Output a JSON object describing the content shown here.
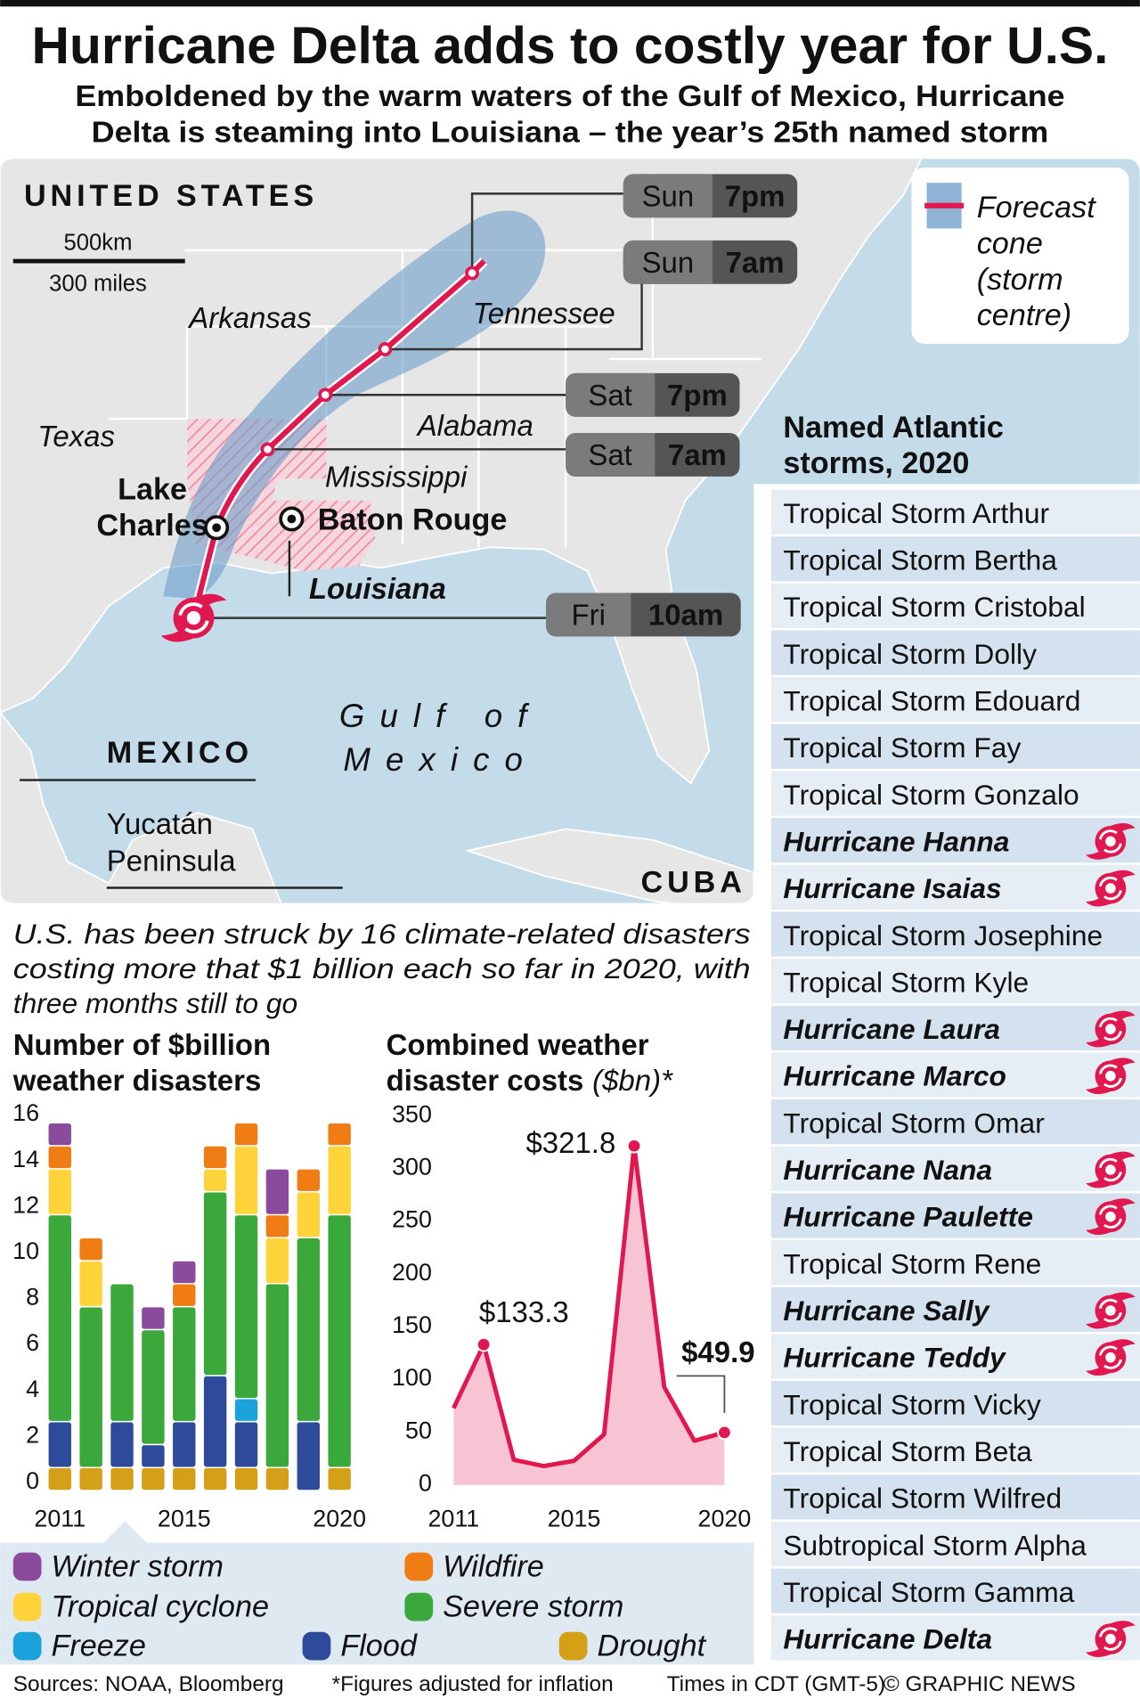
{
  "title": "Hurricane Delta adds to costly year for U.S.",
  "subtitle": [
    "Emboldened by the warm waters of the Gulf of Mexico, Hurricane",
    "Delta is steaming into Louisiana – the year’s 25th named storm"
  ],
  "map": {
    "countries": [
      "UNITED STATES",
      "MEXICO",
      "CUBA"
    ],
    "places": [
      "Arkansas",
      "Tennessee",
      "Texas",
      "Alabama",
      "Mississippi",
      "Louisiana"
    ],
    "cities": [
      [
        "Lake",
        "Charles"
      ],
      [
        "Baton Rouge"
      ]
    ],
    "sea": [
      "Gulf of",
      "Mexico"
    ],
    "peninsula": [
      "Yucatán",
      "Peninsula"
    ],
    "scale": [
      "500km",
      "300 miles"
    ],
    "legend": [
      "Forecast",
      "cone",
      "(storm",
      "centre)"
    ],
    "timeline": [
      {
        "day": "Sun",
        "time": "7pm"
      },
      {
        "day": "Sun",
        "time": "7am"
      },
      {
        "day": "Sat",
        "time": "7pm"
      },
      {
        "day": "Sat",
        "time": "7am"
      },
      {
        "day": "Fri",
        "time": "10am"
      }
    ]
  },
  "storms": {
    "title": [
      "Named Atlantic",
      "storms, 2020"
    ],
    "items": [
      {
        "name": "Tropical Storm Arthur",
        "hurricane": false
      },
      {
        "name": "Tropical Storm Bertha",
        "hurricane": false
      },
      {
        "name": "Tropical Storm Cristobal",
        "hurricane": false
      },
      {
        "name": "Tropical Storm Dolly",
        "hurricane": false
      },
      {
        "name": "Tropical Storm Edouard",
        "hurricane": false
      },
      {
        "name": "Tropical Storm Fay",
        "hurricane": false
      },
      {
        "name": "Tropical Storm Gonzalo",
        "hurricane": false
      },
      {
        "name": "Hurricane Hanna",
        "hurricane": true
      },
      {
        "name": "Hurricane Isaias",
        "hurricane": true
      },
      {
        "name": "Tropical Storm Josephine",
        "hurricane": false
      },
      {
        "name": "Tropical Storm Kyle",
        "hurricane": false
      },
      {
        "name": "Hurricane Laura",
        "hurricane": true
      },
      {
        "name": "Hurricane Marco",
        "hurricane": true
      },
      {
        "name": "Tropical Storm Omar",
        "hurricane": false
      },
      {
        "name": "Hurricane Nana",
        "hurricane": true
      },
      {
        "name": "Hurricane Paulette",
        "hurricane": true
      },
      {
        "name": "Tropical Storm Rene",
        "hurricane": false
      },
      {
        "name": "Hurricane Sally",
        "hurricane": true
      },
      {
        "name": "Hurricane Teddy",
        "hurricane": true
      },
      {
        "name": "Tropical Storm Vicky",
        "hurricane": false
      },
      {
        "name": "Tropical Storm Beta",
        "hurricane": false
      },
      {
        "name": "Tropical Storm Wilfred",
        "hurricane": false
      },
      {
        "name": "Subtropical Storm Alpha",
        "hurricane": false
      },
      {
        "name": "Tropical Storm Gamma",
        "hurricane": false
      },
      {
        "name": "Hurricane Delta",
        "hurricane": true
      }
    ]
  },
  "intro": [
    "U.S. has been struck by 16 climate-related disasters",
    "costing more that $1 billion each so far in 2020, with",
    "three months still to go"
  ],
  "chart_data": [
    {
      "type": "bar",
      "stacked": true,
      "title": [
        "Number of $billion",
        "weather disasters"
      ],
      "categories": [
        "2011",
        null,
        null,
        null,
        "2015",
        null,
        null,
        null,
        null,
        "2020"
      ],
      "ylim": [
        0,
        16
      ],
      "yticks": [
        0,
        2,
        4,
        6,
        8,
        10,
        12,
        14,
        16
      ],
      "series": [
        {
          "name": "Drought",
          "color": "#d4a017",
          "values": [
            1,
            1,
            1,
            1,
            1,
            1,
            1,
            1,
            0,
            1
          ]
        },
        {
          "name": "Flood",
          "color": "#2e4a9a",
          "values": [
            2,
            0,
            2,
            1,
            2,
            4,
            2,
            0,
            3,
            0
          ]
        },
        {
          "name": "Freeze",
          "color": "#1ba2db",
          "values": [
            0,
            0,
            0,
            0,
            0,
            0,
            1,
            0,
            0,
            0
          ]
        },
        {
          "name": "Severe storm",
          "color": "#3aa83a",
          "values": [
            9,
            7,
            6,
            5,
            5,
            8,
            8,
            8,
            8,
            11
          ]
        },
        {
          "name": "Tropical cyclone",
          "color": "#ffd43b",
          "values": [
            2,
            2,
            0,
            0,
            0,
            1,
            3,
            2,
            2,
            3
          ]
        },
        {
          "name": "Wildfire",
          "color": "#f07d14",
          "values": [
            1,
            1,
            0,
            0,
            1,
            1,
            1,
            1,
            1,
            1
          ]
        },
        {
          "name": "Winter storm",
          "color": "#8a4b9c",
          "values": [
            1,
            0,
            0,
            1,
            1,
            0,
            0,
            2,
            0,
            0
          ]
        }
      ]
    },
    {
      "type": "line",
      "title": [
        "Combined weather",
        "disaster costs"
      ],
      "unit": "($bn)*",
      "x": [
        2011,
        2012,
        2013,
        2014,
        2015,
        2016,
        2017,
        2018,
        2019,
        2020
      ],
      "xlim": [
        2011,
        2020
      ],
      "xticks": [
        2011,
        2015,
        2020
      ],
      "values": [
        73,
        133.3,
        24,
        18,
        23,
        48,
        321.8,
        93,
        42,
        49.9
      ],
      "value_labels": [
        null,
        "$133.3",
        null,
        null,
        null,
        null,
        "$321.8",
        null,
        null,
        "$49.9"
      ],
      "color": "#e0184f",
      "fill": "#f7c4d3",
      "ylim": [
        0,
        350
      ],
      "yticks": [
        0,
        50,
        100,
        150,
        200,
        250,
        300,
        350
      ]
    }
  ],
  "footer": [
    "Sources: NOAA, Bloomberg",
    "*Figures adjusted for inflation",
    "Times in CDT (GMT-5)",
    "© GRAPHIC NEWS"
  ]
}
